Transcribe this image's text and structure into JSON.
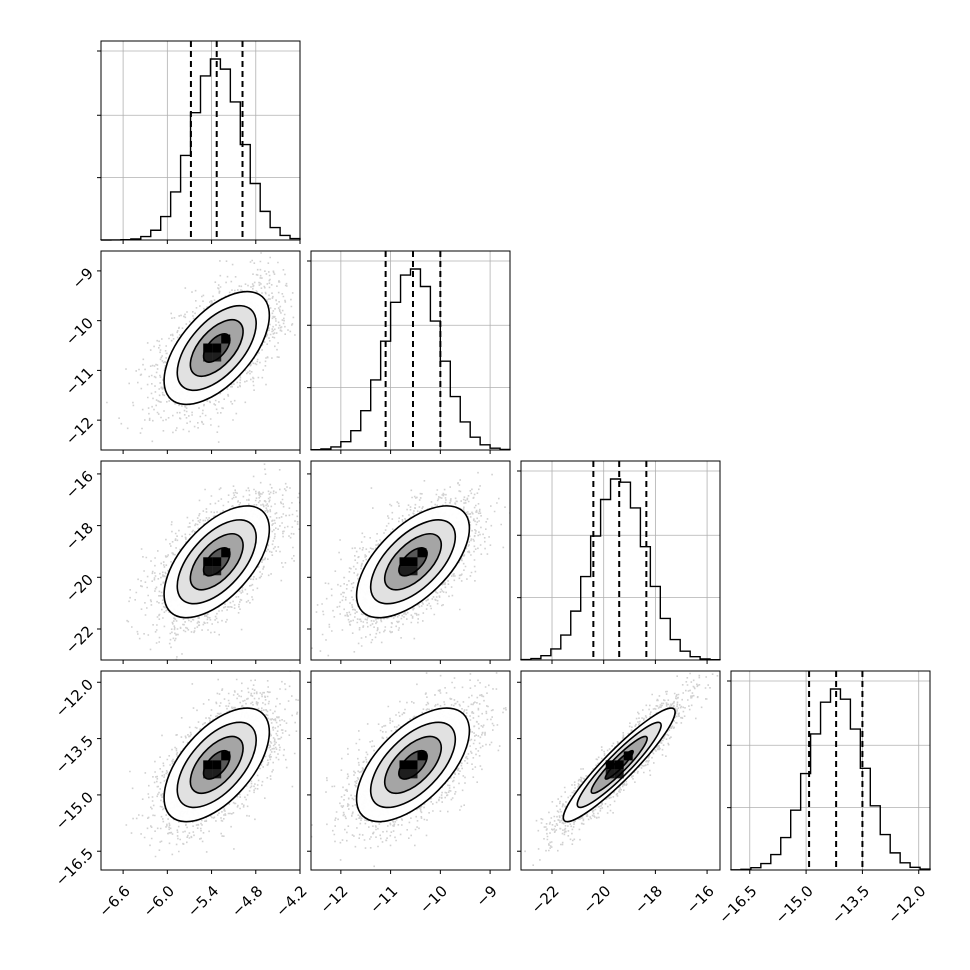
{
  "chart_data": {
    "type": "corner",
    "description_of_layout": "4x4 lower-triangular corner plot: 1D histograms on diagonal, 2D density contours below",
    "parameters": [
      {
        "range": [
          -6.9,
          -4.2
        ],
        "ticks": [
          -6.6,
          -6.0,
          -5.4,
          -4.8,
          -4.2
        ],
        "tick_labels": [
          "−6.6",
          "−6.0",
          "−5.4",
          "−4.8",
          "−4.2"
        ],
        "mean": -5.33,
        "sd": 0.34,
        "quantiles": [
          -5.68,
          -5.33,
          -4.98
        ]
      },
      {
        "range": [
          -12.6,
          -8.6
        ],
        "ticks": [
          -12,
          -11,
          -10,
          -9
        ],
        "tick_labels": [
          "−12",
          "−11",
          "−10",
          "−9"
        ],
        "mean": -10.55,
        "sd": 0.54,
        "quantiles": [
          -11.1,
          -10.55,
          -10.0
        ]
      },
      {
        "range": [
          -23.2,
          -15.5
        ],
        "ticks": [
          -22,
          -20,
          -18,
          -16
        ],
        "tick_labels": [
          "−22",
          "−20",
          "−18",
          "−16"
        ],
        "mean": -19.4,
        "sd": 1.03,
        "quantiles": [
          -20.4,
          -19.4,
          -18.35
        ]
      },
      {
        "range": [
          -17.0,
          -11.7
        ],
        "ticks": [
          -16.5,
          -15.0,
          -13.5,
          -12.0
        ],
        "tick_labels": [
          "−16.5",
          "−15.0",
          "−13.5",
          "−12.0"
        ],
        "mean": -14.2,
        "sd": 0.72,
        "quantiles": [
          -14.92,
          -14.2,
          -13.5
        ]
      }
    ],
    "correlations": {
      "1,0": 0.58,
      "2,0": 0.58,
      "2,1": 0.6,
      "3,0": 0.58,
      "3,1": 0.6,
      "3,2": 0.93
    },
    "histogram_bins": 20,
    "contour_levels": [
      0.5,
      1.0,
      1.5,
      2.0
    ],
    "grid": true,
    "title": "",
    "legend": "none"
  }
}
